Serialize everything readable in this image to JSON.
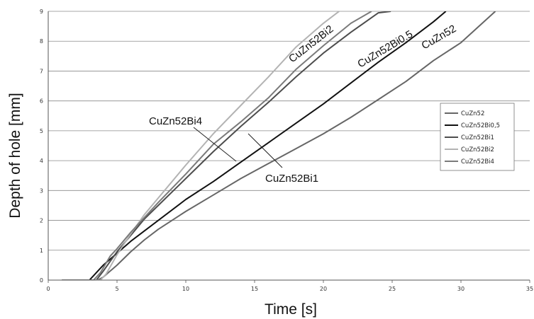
{
  "chart_data": {
    "type": "line",
    "title": "",
    "xlabel": "Time [s]",
    "ylabel": "Depth of hole [mm]",
    "xlim": [
      0,
      35
    ],
    "ylim": [
      0,
      9
    ],
    "xticks": [
      "0",
      "5",
      "10",
      "15",
      "20",
      "25",
      "30",
      "35"
    ],
    "yticks": [
      "0",
      "1",
      "2",
      "3",
      "4",
      "5",
      "6",
      "7",
      "8",
      "9"
    ],
    "grid": "horizontal",
    "legend_position": "right",
    "series": [
      {
        "name": "CuZn52",
        "color": "#666666",
        "x": [
          1,
          3.6,
          4,
          4.5,
          5,
          6,
          7,
          8,
          10,
          12,
          14,
          16,
          18,
          20,
          22,
          24,
          26,
          28,
          30,
          32.5
        ],
        "y": [
          0,
          0,
          0.1,
          0.3,
          0.5,
          0.95,
          1.35,
          1.7,
          2.3,
          2.85,
          3.4,
          3.9,
          4.4,
          4.9,
          5.45,
          6.05,
          6.65,
          7.35,
          7.95,
          9
        ]
      },
      {
        "name": "CuZn52Bi0,5",
        "color": "#111111",
        "x": [
          1,
          3.0,
          3.5,
          4,
          5,
          6,
          7,
          8,
          10,
          12,
          14,
          16,
          18,
          20,
          22,
          24,
          26,
          28,
          28.9
        ],
        "y": [
          0,
          0,
          0.25,
          0.5,
          0.9,
          1.3,
          1.65,
          2.0,
          2.7,
          3.3,
          3.95,
          4.6,
          5.25,
          5.9,
          6.6,
          7.3,
          7.95,
          8.65,
          9
        ]
      },
      {
        "name": "CuZn52Bi1",
        "color": "#4d4d4d",
        "x": [
          1,
          3.5,
          4,
          5,
          6,
          7,
          8,
          10,
          12,
          14,
          16,
          18,
          20,
          22,
          24,
          24.9
        ],
        "y": [
          0,
          0,
          0.3,
          0.95,
          1.5,
          2.05,
          2.5,
          3.4,
          4.3,
          5.15,
          5.95,
          6.8,
          7.6,
          8.3,
          8.95,
          9
        ]
      },
      {
        "name": "CuZn52Bi2",
        "color": "#b3b3b3",
        "x": [
          1,
          3.8,
          4.2,
          5,
          6,
          7,
          8,
          10,
          12,
          14,
          16,
          18,
          20,
          22,
          23.0
        ],
        "y": [
          0,
          0,
          0.2,
          0.85,
          1.55,
          2.2,
          2.75,
          3.85,
          4.9,
          5.85,
          6.8,
          7.8,
          8.6,
          9.3,
          9.6
        ]
      },
      {
        "name": "CuZn52Bi4",
        "color": "#7a7a7a",
        "x": [
          1,
          3.3,
          3.8,
          4.5,
          5,
          6,
          7,
          8,
          10,
          12,
          14,
          16,
          18,
          20,
          22,
          23.5
        ],
        "y": [
          0,
          0,
          0.25,
          0.8,
          1.05,
          1.6,
          2.1,
          2.6,
          3.55,
          4.55,
          5.3,
          6.1,
          7.05,
          7.85,
          8.6,
          9
        ]
      }
    ],
    "annotations": [
      {
        "text": "CuZn52Bi2",
        "series": "CuZn52Bi2"
      },
      {
        "text": "CuZn52Bi0.5",
        "series": "CuZn52Bi0,5"
      },
      {
        "text": "CuZn52",
        "series": "CuZn52"
      },
      {
        "text": "CuZn52Bi4",
        "series": "CuZn52Bi4"
      },
      {
        "text": "CuZn52Bi1",
        "series": "CuZn52Bi1"
      }
    ]
  }
}
